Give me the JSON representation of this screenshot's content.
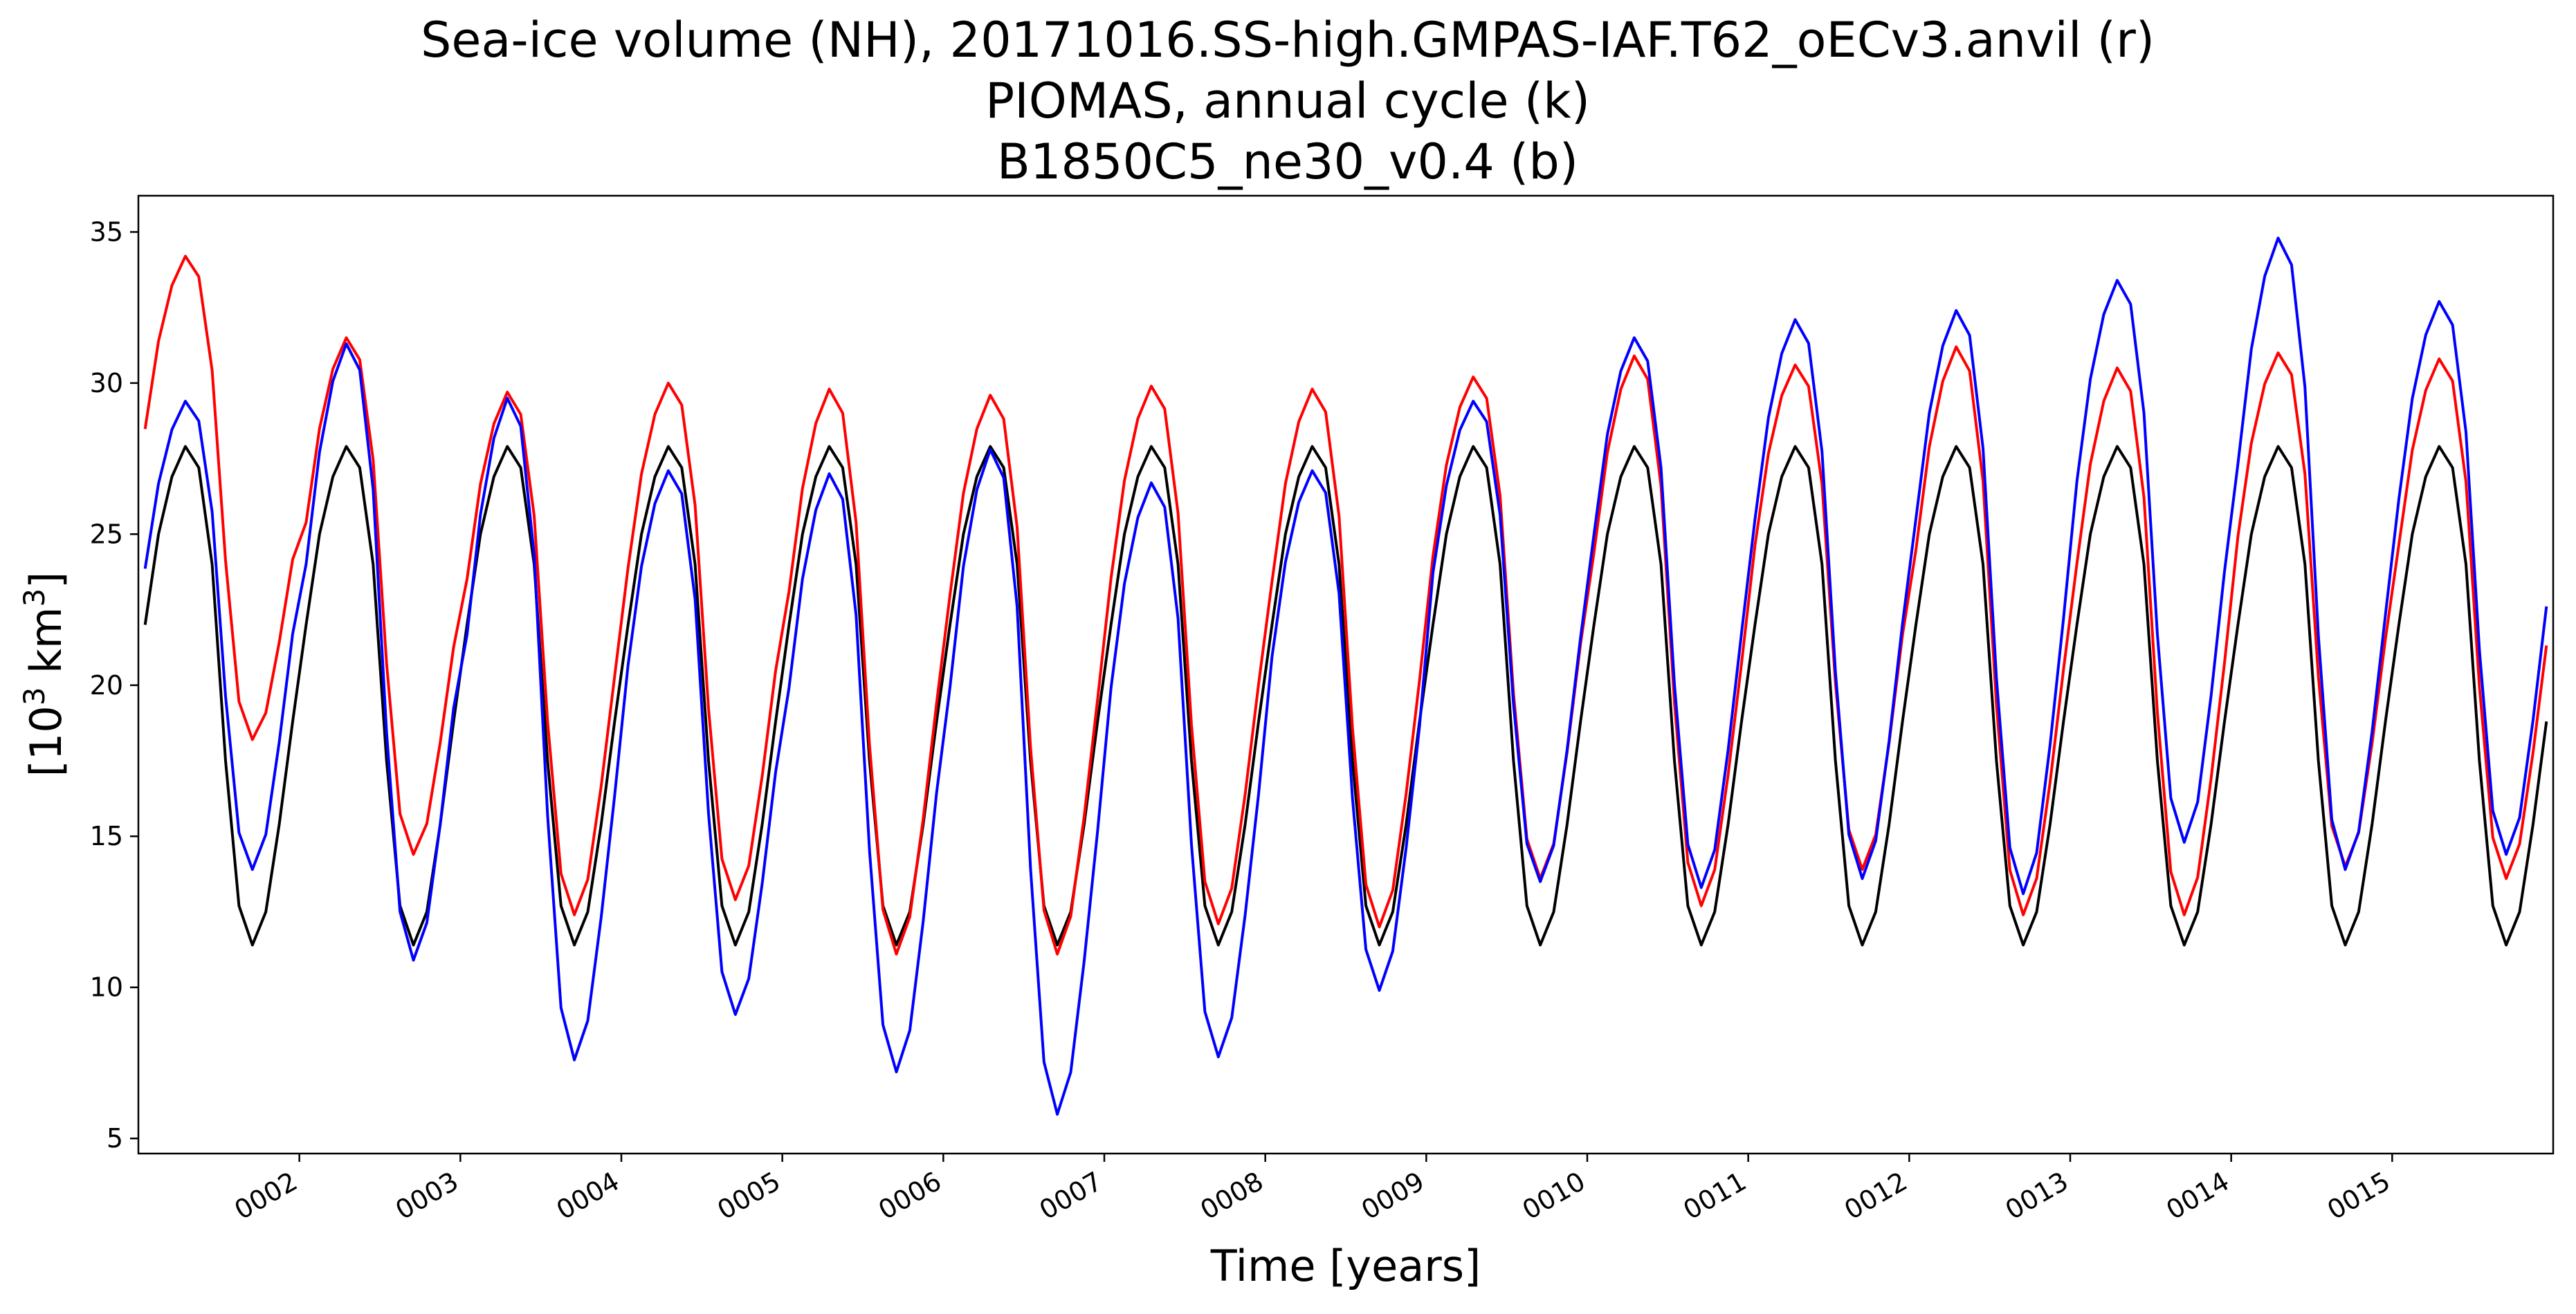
{
  "chart_data": {
    "type": "line",
    "title_lines": [
      "Sea-ice volume (NH), 20171016.SS-high.GMPAS-IAF.T62_oECv3.anvil (r)",
      "PIOMAS, annual cycle (k)",
      "B1850C5_ne30_v0.4 (b)"
    ],
    "xlabel": "Time [years]",
    "ylabel_base": "[10",
    "ylabel_sup": "3",
    "ylabel_unit": " km",
    "ylabel_sup2": "3",
    "ylabel_end": "]",
    "x_range_years": [
      1.0,
      16.0
    ],
    "ylim": [
      4.5,
      36.2
    ],
    "yticks": [
      5,
      10,
      15,
      20,
      25,
      30,
      35
    ],
    "xticks": [
      "0002",
      "0003",
      "0004",
      "0005",
      "0006",
      "0007",
      "0008",
      "0009",
      "0010",
      "0011",
      "0012",
      "0013",
      "0014",
      "0015"
    ],
    "series": [
      {
        "color": "#000000",
        "label": "PIOMAS, annual cycle (k)",
        "climatology_monthly": [
          22.0,
          25.0,
          26.9,
          27.9,
          27.2,
          24.0,
          17.5,
          12.7,
          11.4,
          12.5,
          15.4,
          18.8
        ],
        "years": 15
      },
      {
        "color": "#ff0000",
        "label": "20171016.SS-high.GMPAS-IAF.T62_oECv3.anvil (r)",
        "annual_max": [
          34.2,
          31.5,
          29.7,
          30.0,
          29.8,
          29.6,
          29.9,
          29.8,
          30.2,
          30.9,
          30.6,
          31.2,
          30.5,
          31.0,
          30.8
        ],
        "annual_min": [
          18.2,
          14.4,
          12.4,
          12.9,
          11.1,
          11.1,
          12.1,
          12.0,
          13.6,
          12.7,
          13.9,
          12.4,
          12.4,
          14.0,
          13.6
        ]
      },
      {
        "color": "#0000ff",
        "label": "B1850C5_ne30_v0.4 (b)",
        "annual_max": [
          29.4,
          31.3,
          29.5,
          27.1,
          27.0,
          27.8,
          26.7,
          27.1,
          29.4,
          31.5,
          32.1,
          32.4,
          33.4,
          34.8,
          32.7
        ],
        "annual_min": [
          13.9,
          10.9,
          7.6,
          9.1,
          7.2,
          5.8,
          7.7,
          9.9,
          13.5,
          13.3,
          13.6,
          13.1,
          14.8,
          13.9,
          14.4
        ]
      }
    ],
    "grid": false,
    "legend": "none"
  }
}
